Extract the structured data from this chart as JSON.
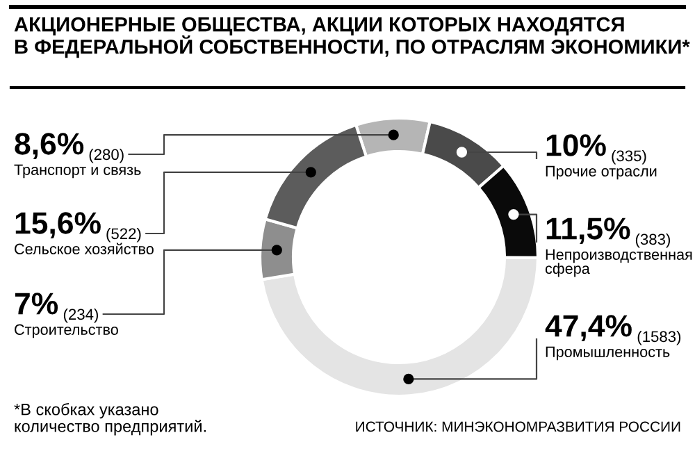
{
  "chart_data": {
    "type": "donut",
    "title": "АКЦИОНЕРНЫЕ ОБЩЕСТВА, АКЦИИ КОТОРЫХ НАХОДЯТСЯ\nВ ФЕДЕРАЛЬНОЙ СОБСТВЕННОСТИ, ПО ОТРАСЛЯМ ЭКОНОМИКИ*",
    "categories": [
      "Транспорт и связь",
      "Прочие отрасли",
      "Непроизводственная сфера",
      "Промышленность",
      "Строительство",
      "Сельское хозяйство"
    ],
    "values": [
      8.6,
      10,
      11.5,
      47.4,
      7,
      15.6
    ],
    "value_labels": [
      "8,6% (280)",
      "10% (335)",
      "11,5% (383)",
      "47,4% (1583)",
      "7% (234)",
      "15,6% (522)"
    ],
    "colors": [
      "#b5b5b5",
      "#4a4a4a",
      "#0a0a0a",
      "#e4e4e4",
      "#8e8e8e",
      "#5c5c5c"
    ],
    "annotations": [
      "*В скобках указано\nколичество предприятий.",
      "ИСТОЧНИК: МИНЭКОНОМРАЗВИТИЯ РОССИИ"
    ],
    "legend": false
  }
}
